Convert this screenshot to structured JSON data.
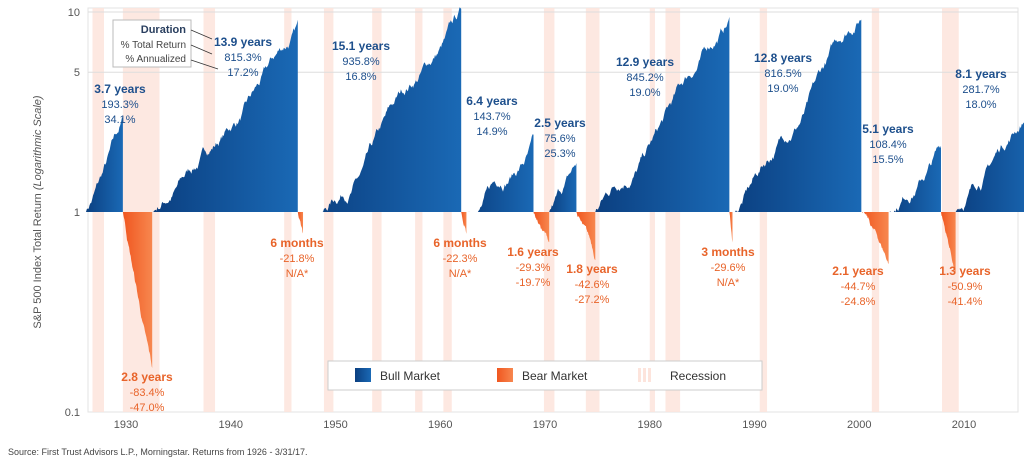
{
  "chart_data": {
    "type": "area",
    "ylabel": "S&P 500 Index Total Return",
    "ylabel_suffix": "(Logarithmic Scale)",
    "y_scale": "log",
    "ylim": [
      0.1,
      10
    ],
    "yticks": [
      "10",
      "5",
      "1",
      "0.1"
    ],
    "ytick_values": [
      10,
      5,
      1,
      0.1
    ],
    "xlim": [
      1926,
      2017.25
    ],
    "xticks": [
      1930,
      1940,
      1950,
      1960,
      1970,
      1980,
      1990,
      2000,
      2010
    ],
    "grid": "horizontal at 10 and 5",
    "colors": {
      "bull": "#0b4a8e",
      "bull_light": "#1866b2",
      "bear": "#f26a2e",
      "recession": "#fde4dc",
      "text_bull": "#1d4f8c",
      "text_bear": "#e8642a"
    },
    "key": {
      "line1": "Duration",
      "line2": "% Total Return",
      "line3": "% Annualized"
    },
    "bull_markets": [
      {
        "start": 1926.1,
        "end": 1929.7,
        "peak": 2.933,
        "duration": "3.7 years",
        "total": "193.3%",
        "annualized": "34.1%"
      },
      {
        "start": 1932.5,
        "end": 1946.4,
        "peak": 9.153,
        "duration": "13.9 years",
        "total": "815.3%",
        "annualized": "17.2%"
      },
      {
        "start": 1947.4,
        "end": 1962.0,
        "peak": 10.358,
        "duration": "15.1 years",
        "total": "935.8%",
        "annualized": "16.8%"
      },
      {
        "start": 1962.5,
        "end": 1968.9,
        "peak": 2.437,
        "duration": "6.4 years",
        "total": "143.7%",
        "annualized": "14.9%"
      },
      {
        "start": 1970.4,
        "end": 1973.0,
        "peak": 1.756,
        "duration": "2.5 years",
        "total": "75.6%",
        "annualized": "25.3%"
      },
      {
        "start": 1974.8,
        "end": 1987.6,
        "peak": 9.452,
        "duration": "12.9 years",
        "total": "845.2%",
        "annualized": "19.0%"
      },
      {
        "start": 1987.9,
        "end": 2000.2,
        "peak": 9.165,
        "duration": "12.8 years",
        "total": "816.5%",
        "annualized": "19.0%"
      },
      {
        "start": 2002.8,
        "end": 2007.8,
        "peak": 2.084,
        "duration": "5.1 years",
        "total": "108.4%",
        "annualized": "15.5%"
      },
      {
        "start": 2009.2,
        "end": 2017.25,
        "peak": 3.817,
        "duration": "8.1 years",
        "total": "281.7%",
        "annualized": "18.0%"
      }
    ],
    "bear_markets": [
      {
        "start": 1929.7,
        "end": 1932.5,
        "trough": 0.166,
        "duration": "2.8 years",
        "total": "-83.4%",
        "annualized": "-47.0%"
      },
      {
        "start": 1946.4,
        "end": 1946.9,
        "trough": 0.782,
        "duration": "6 months",
        "total": "-21.8%",
        "annualized": "N/A*"
      },
      {
        "start": 1962.0,
        "end": 1962.5,
        "trough": 0.777,
        "duration": "6 months",
        "total": "-22.3%",
        "annualized": "N/A*"
      },
      {
        "start": 1968.9,
        "end": 1970.4,
        "trough": 0.707,
        "duration": "1.6 years",
        "total": "-29.3%",
        "annualized": "-19.7%"
      },
      {
        "start": 1973.0,
        "end": 1974.8,
        "trough": 0.574,
        "duration": "1.8 years",
        "total": "-42.6%",
        "annualized": "-27.2%"
      },
      {
        "start": 1987.6,
        "end": 1987.9,
        "trough": 0.704,
        "duration": "3 months",
        "total": "-29.6%",
        "annualized": "N/A*"
      },
      {
        "start": 2000.2,
        "end": 2002.8,
        "trough": 0.553,
        "duration": "2.1 years",
        "total": "-44.7%",
        "annualized": "-24.8%"
      },
      {
        "start": 2007.8,
        "end": 2009.2,
        "trough": 0.491,
        "duration": "1.3 years",
        "total": "-50.9%",
        "annualized": "-41.4%"
      }
    ],
    "recessions": [
      [
        1926.8,
        1927.9
      ],
      [
        1929.7,
        1933.2
      ],
      [
        1937.4,
        1938.5
      ],
      [
        1945.1,
        1945.8
      ],
      [
        1948.9,
        1949.8
      ],
      [
        1953.5,
        1954.4
      ],
      [
        1957.6,
        1958.3
      ],
      [
        1960.3,
        1961.1
      ],
      [
        1969.9,
        1970.9
      ],
      [
        1973.9,
        1975.2
      ],
      [
        1980.0,
        1980.5
      ],
      [
        1981.5,
        1982.9
      ],
      [
        1990.5,
        1991.2
      ],
      [
        2001.2,
        2001.9
      ],
      [
        2007.9,
        2009.5
      ]
    ],
    "legend": {
      "placement": "bottom-center",
      "bull": "Bull Market",
      "bear": "Bear Market",
      "recession": "Recession"
    }
  },
  "source": "Source: First Trust Advisors L.P., Morningstar. Returns from 1926 - 3/31/17."
}
